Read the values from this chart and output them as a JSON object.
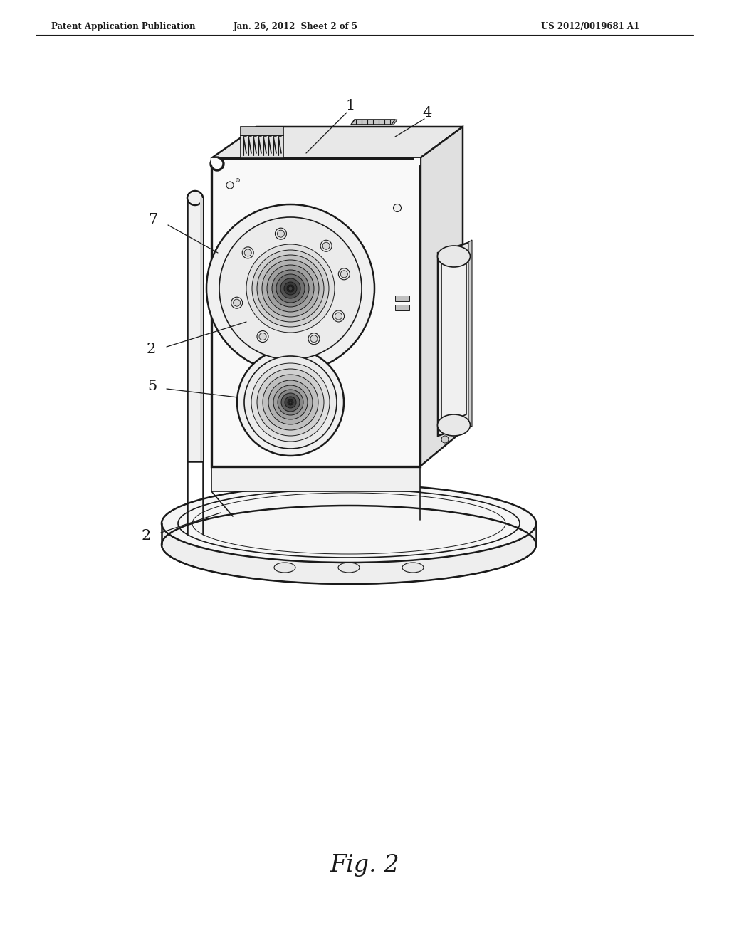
{
  "bg_color": "#ffffff",
  "lc": "#1a1a1a",
  "header_left": "Patent Application Publication",
  "header_mid": "Jan. 26, 2012  Sheet 2 of 5",
  "header_right": "US 2012/0019681 A1",
  "figure_label": "Fig. 2"
}
